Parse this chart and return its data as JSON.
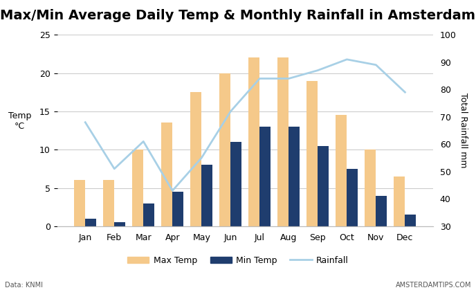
{
  "months": [
    "Jan",
    "Feb",
    "Mar",
    "Apr",
    "May",
    "Jun",
    "Jul",
    "Aug",
    "Sep",
    "Oct",
    "Nov",
    "Dec"
  ],
  "max_temp": [
    6,
    6,
    10,
    13.5,
    17.5,
    20,
    22,
    22,
    19,
    14.5,
    10,
    6.5
  ],
  "min_temp": [
    1,
    0.5,
    3,
    4.5,
    8,
    11,
    13,
    13,
    10.5,
    7.5,
    4,
    1.5
  ],
  "rainfall_mm": [
    68,
    51,
    61,
    43,
    55,
    72,
    84,
    84,
    87,
    91,
    89,
    79
  ],
  "max_temp_color": "#f5c98a",
  "min_temp_color": "#1f3d6e",
  "rainfall_color": "#a8d0e6",
  "title": "Max/Min Average Daily Temp & Monthly Rainfall in Amsterdam",
  "ylabel_left": "Temp\n°C",
  "ylabel_right": "Total Rainfall mm",
  "ylim_left": [
    0,
    25
  ],
  "ylim_right": [
    30,
    100
  ],
  "yticks_left": [
    0,
    5,
    10,
    15,
    20,
    25
  ],
  "yticks_right": [
    30,
    40,
    50,
    60,
    70,
    80,
    90,
    100
  ],
  "source_text": "Data: KNMI",
  "watermark_text": "AMSTERDAMTIPS.COM",
  "background_color": "#ffffff",
  "grid_color": "#cccccc",
  "title_fontsize": 14,
  "axis_fontsize": 9,
  "tick_fontsize": 9,
  "legend_fontsize": 9,
  "bar_width": 0.38
}
